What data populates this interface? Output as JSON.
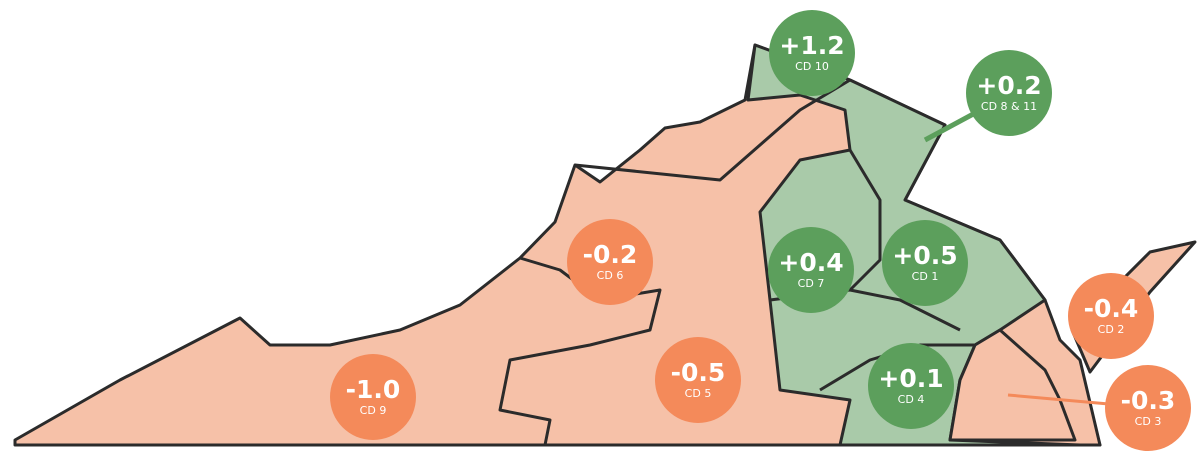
{
  "colors": {
    "gain_fill": "#a9caa9",
    "loss_fill": "#f6c1a8",
    "gain_bubble": "#5c9f5c",
    "loss_bubble": "#f48a5a",
    "outline": "#2b2b2b"
  },
  "districts": [
    {
      "label": "CD 10",
      "value": "+1.2",
      "trend": "gain"
    },
    {
      "label": "CD 8 & 11",
      "value": "+0.2",
      "trend": "gain"
    },
    {
      "label": "CD 6",
      "value": "-0.2",
      "trend": "loss"
    },
    {
      "label": "CD 7",
      "value": "+0.4",
      "trend": "gain"
    },
    {
      "label": "CD 1",
      "value": "+0.5",
      "trend": "gain"
    },
    {
      "label": "CD 2",
      "value": "-0.4",
      "trend": "loss"
    },
    {
      "label": "CD 9",
      "value": "-1.0",
      "trend": "loss"
    },
    {
      "label": "CD 5",
      "value": "-0.5",
      "trend": "loss"
    },
    {
      "label": "CD 4",
      "value": "+0.1",
      "trend": "gain"
    },
    {
      "label": "CD 3",
      "value": "-0.3",
      "trend": "loss"
    }
  ]
}
